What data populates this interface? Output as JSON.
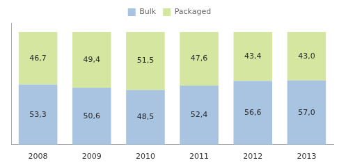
{
  "chart_data": {
    "type": "bar",
    "stacked": true,
    "categories": [
      "2008",
      "2009",
      "2010",
      "2011",
      "2012",
      "2013"
    ],
    "series": [
      {
        "name": "Bulk",
        "color": "#a8c4e0",
        "values": [
          53.3,
          50.6,
          48.5,
          52.4,
          56.6,
          57.0
        ],
        "value_labels": [
          "53,3",
          "50,6",
          "48,5",
          "52,4",
          "56,6",
          "57,0"
        ]
      },
      {
        "name": "Packaged",
        "color": "#d4e6a0",
        "values": [
          46.7,
          49.4,
          51.5,
          47.6,
          43.4,
          43.0
        ],
        "value_labels": [
          "46,7",
          "49,4",
          "51,5",
          "47,6",
          "43,4",
          "43,0"
        ]
      }
    ],
    "ylim": [
      0,
      108
    ],
    "tick_labels": "x",
    "grid": false,
    "legend": "top",
    "data_labels": true
  }
}
